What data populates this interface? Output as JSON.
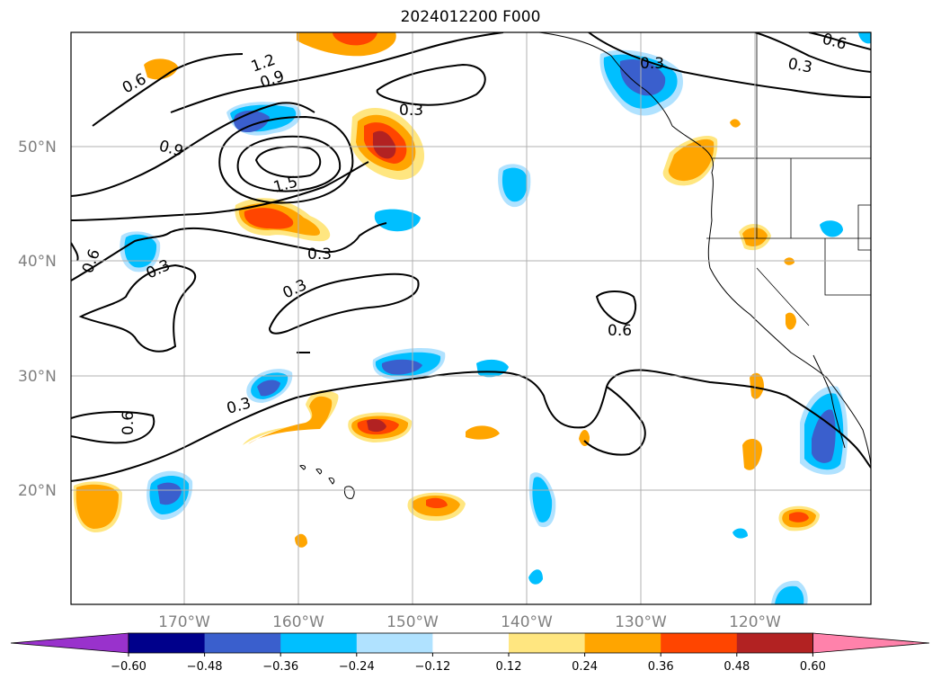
{
  "title": "2024012200 F000",
  "lat_labels": [
    "50°N",
    "40°N",
    "30°N",
    "20°N"
  ],
  "lon_labels": [
    "170°W",
    "160°W",
    "150°W",
    "140°W",
    "130°W",
    "120°W"
  ],
  "contour_labels": [
    "0.6",
    "1.2",
    "0.9",
    "0.9",
    "1.5",
    "0.3",
    "0.3",
    "0.3",
    "0.3",
    "0.6",
    "0.6",
    "0.6",
    "0.3",
    "0.3",
    "0.6",
    "0.3"
  ],
  "colorbar": {
    "ticks": [
      "−0.60",
      "−0.48",
      "−0.36",
      "−0.24",
      "−0.12",
      "0.12",
      "0.24",
      "0.36",
      "0.48",
      "0.60"
    ],
    "colors": [
      "#9932cc",
      "#00008b",
      "#3a5fcd",
      "#00bfff",
      "#b0e2ff",
      "#ffffff",
      "#ffe680",
      "#ffa500",
      "#ff4500",
      "#b22222",
      "#ff82ab"
    ]
  }
}
